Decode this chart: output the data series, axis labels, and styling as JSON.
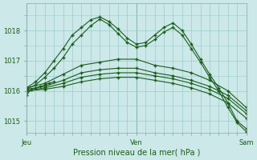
{
  "title": "Pression niveau de la mer( hPa )",
  "bg_color": "#cce8e8",
  "grid_color": "#99cccc",
  "line_color": "#1a5c1a",
  "marker": "+",
  "xlabel_jeu": "Jeu",
  "xlabel_ven": "Ven",
  "xlabel_sam": "Sam",
  "yticks": [
    1015,
    1016,
    1017,
    1018
  ],
  "ylim": [
    1014.6,
    1018.9
  ],
  "xlim": [
    0,
    48
  ],
  "jeu_x": 0,
  "ven_x": 24,
  "sam_x": 48,
  "vline_jeu": 0,
  "vline_ven": 24,
  "vline_sam": 48,
  "series": [
    {
      "x": [
        0,
        2,
        4,
        6,
        8,
        10,
        12,
        14,
        16,
        18,
        20,
        22,
        24,
        26,
        28,
        30,
        32,
        34,
        36,
        38,
        40,
        42,
        44,
        46,
        48
      ],
      "y": [
        1016.1,
        1016.3,
        1016.6,
        1017.0,
        1017.4,
        1017.85,
        1018.1,
        1018.35,
        1018.45,
        1018.3,
        1018.05,
        1017.75,
        1017.55,
        1017.6,
        1017.85,
        1018.1,
        1018.25,
        1018.0,
        1017.55,
        1017.05,
        1016.55,
        1016.1,
        1015.6,
        1015.0,
        1014.75
      ]
    },
    {
      "x": [
        0,
        2,
        4,
        6,
        8,
        10,
        12,
        14,
        16,
        18,
        20,
        22,
        24,
        26,
        28,
        30,
        32,
        34,
        36,
        38,
        40,
        42,
        44,
        46,
        48
      ],
      "y": [
        1016.05,
        1016.2,
        1016.45,
        1016.75,
        1017.1,
        1017.55,
        1017.85,
        1018.15,
        1018.38,
        1018.2,
        1017.9,
        1017.6,
        1017.45,
        1017.5,
        1017.7,
        1017.95,
        1018.1,
        1017.85,
        1017.4,
        1016.95,
        1016.45,
        1016.0,
        1015.45,
        1014.95,
        1014.65
      ]
    },
    {
      "x": [
        0,
        4,
        8,
        12,
        16,
        20,
        24,
        28,
        32,
        36,
        40,
        44,
        48
      ],
      "y": [
        1016.1,
        1016.25,
        1016.55,
        1016.85,
        1016.95,
        1017.05,
        1017.05,
        1016.85,
        1016.75,
        1016.6,
        1016.35,
        1016.0,
        1015.45
      ]
    },
    {
      "x": [
        0,
        4,
        8,
        12,
        16,
        20,
        24,
        28,
        32,
        36,
        40,
        44,
        48
      ],
      "y": [
        1016.05,
        1016.15,
        1016.35,
        1016.6,
        1016.7,
        1016.75,
        1016.75,
        1016.6,
        1016.5,
        1016.35,
        1016.15,
        1015.85,
        1015.35
      ]
    },
    {
      "x": [
        0,
        4,
        8,
        12,
        16,
        20,
        24,
        28,
        32,
        36,
        40,
        44,
        48
      ],
      "y": [
        1016.0,
        1016.1,
        1016.25,
        1016.45,
        1016.55,
        1016.6,
        1016.6,
        1016.5,
        1016.4,
        1016.25,
        1016.05,
        1015.75,
        1015.25
      ]
    },
    {
      "x": [
        0,
        4,
        8,
        12,
        16,
        20,
        24,
        28,
        32,
        36,
        40,
        44,
        48
      ],
      "y": [
        1016.0,
        1016.05,
        1016.15,
        1016.3,
        1016.4,
        1016.45,
        1016.45,
        1016.35,
        1016.25,
        1016.1,
        1015.9,
        1015.6,
        1015.1
      ]
    },
    {
      "x": [
        0,
        1,
        2,
        3,
        4,
        5,
        6
      ],
      "y": [
        1015.85,
        1016.05,
        1016.1,
        1016.15,
        1016.2,
        1016.25,
        1016.3
      ]
    }
  ],
  "fontsize_tick": 6,
  "fontsize_xlabel": 7
}
